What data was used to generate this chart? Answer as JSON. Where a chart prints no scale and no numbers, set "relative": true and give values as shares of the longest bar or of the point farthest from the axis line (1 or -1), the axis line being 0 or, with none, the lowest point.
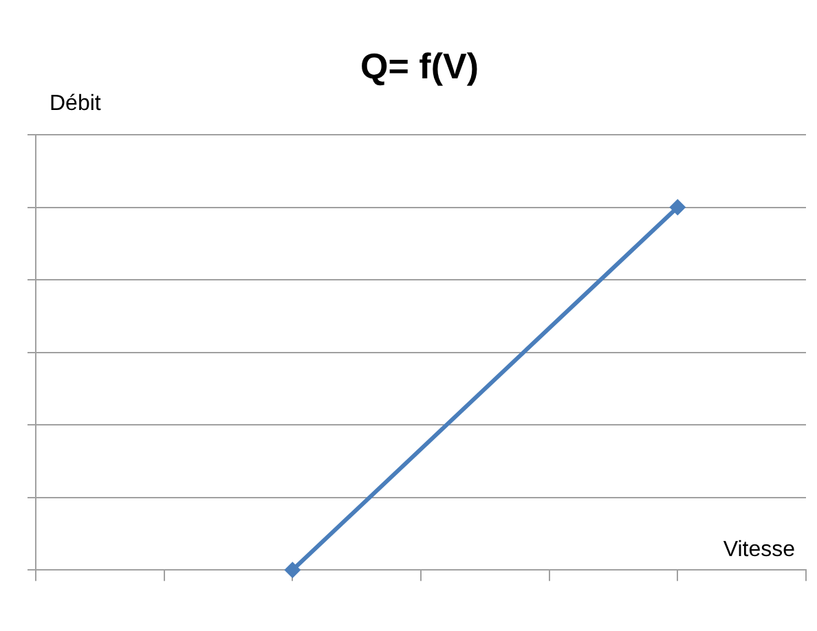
{
  "chart_data": {
    "type": "line",
    "title": "Q= f(V)",
    "xlabel": "Vitesse",
    "ylabel": "Débit",
    "categories": [
      null,
      null,
      null,
      null,
      null,
      null,
      null
    ],
    "series": [
      {
        "color": "#4a7ebb",
        "values": [
          null,
          null,
          0,
          null,
          null,
          1,
          null
        ]
      }
    ],
    "relative": true,
    "grid": "y",
    "legend": false,
    "marker": "diamond",
    "line_style": "solid"
  }
}
